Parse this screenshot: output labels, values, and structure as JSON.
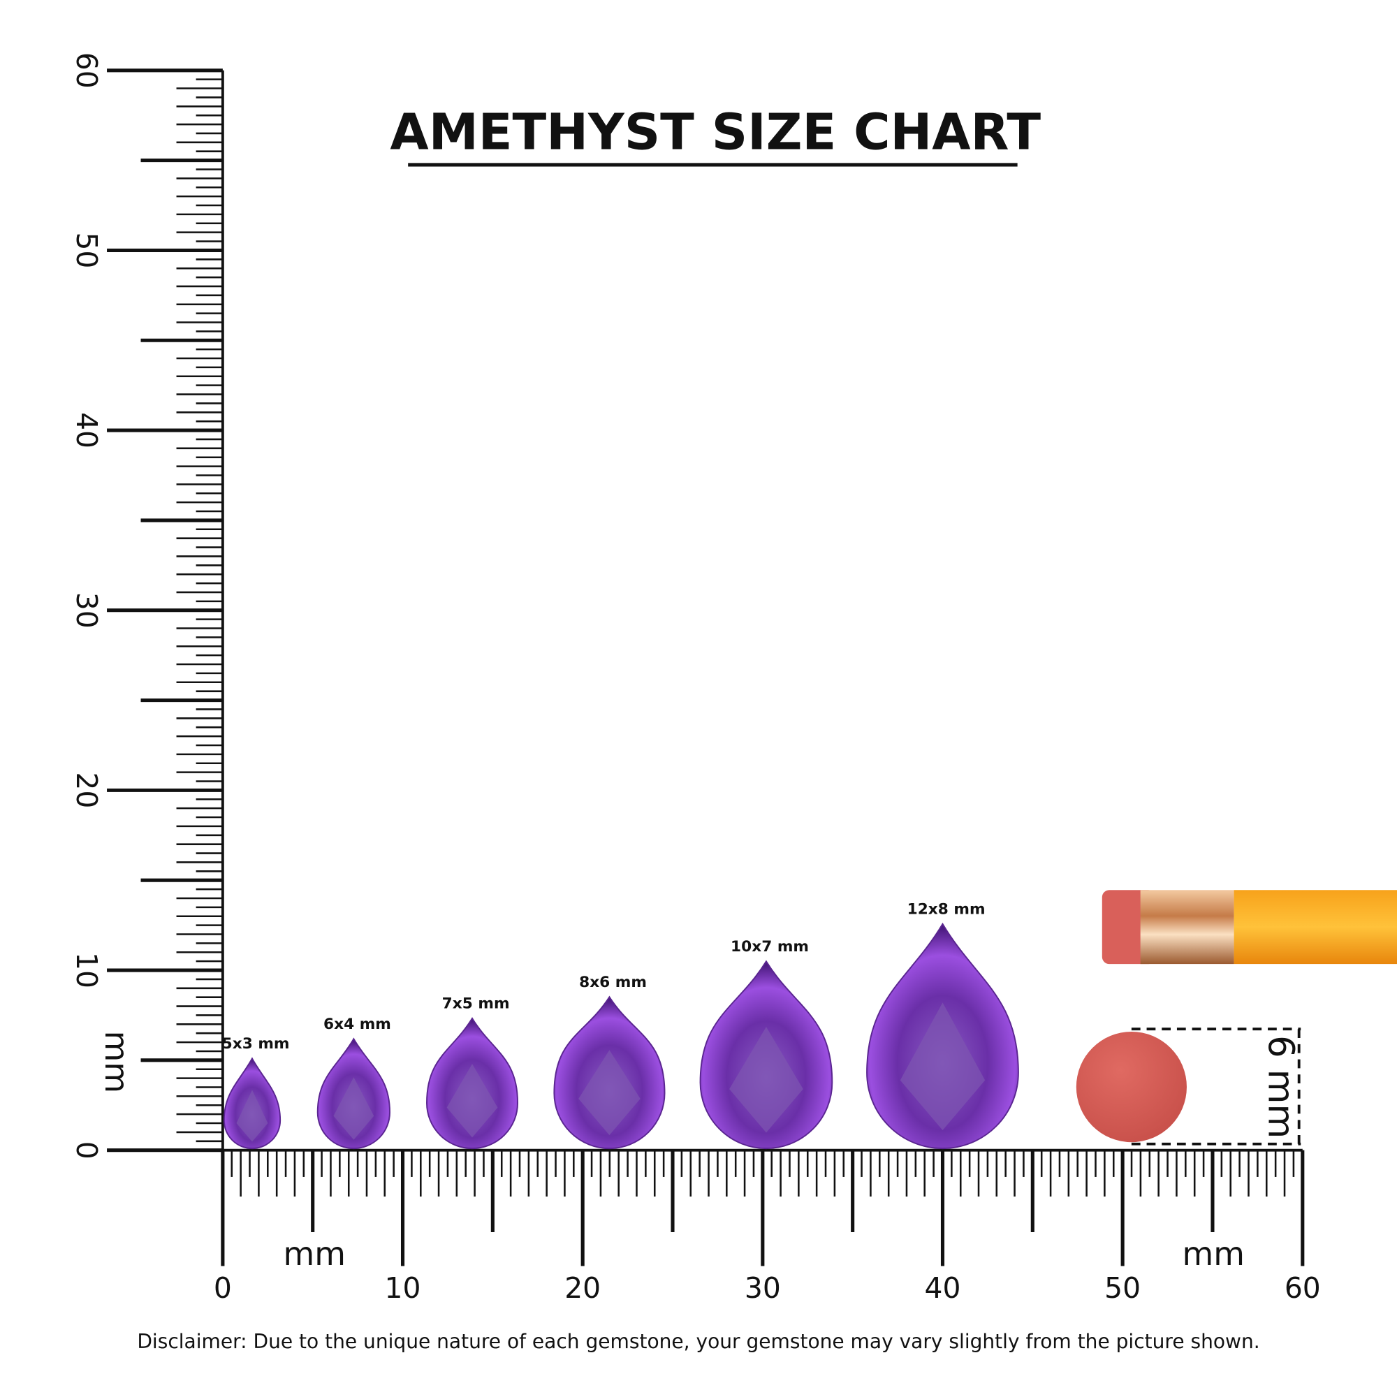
{
  "header": {
    "title": "AMETHYST SIZE CHART"
  },
  "vertical_ruler": {
    "labels": [
      "0",
      "10",
      "20",
      "30",
      "40",
      "50",
      "60"
    ],
    "unit": "mm"
  },
  "horizontal_ruler": {
    "labels": [
      "0",
      "10",
      "20",
      "30",
      "40",
      "50",
      "60"
    ],
    "units": [
      "mm",
      "mm"
    ]
  },
  "gems": [
    "5x3 mm",
    "6x4 mm",
    "7x5 mm",
    "8x6 mm",
    "10x7 mm",
    "12x8 mm"
  ],
  "reference": {
    "label": "6 mm"
  },
  "disclaimer": "Disclaimer: Due to the unique nature of each gemstone, your gemstone may vary slightly from the picture shown."
}
